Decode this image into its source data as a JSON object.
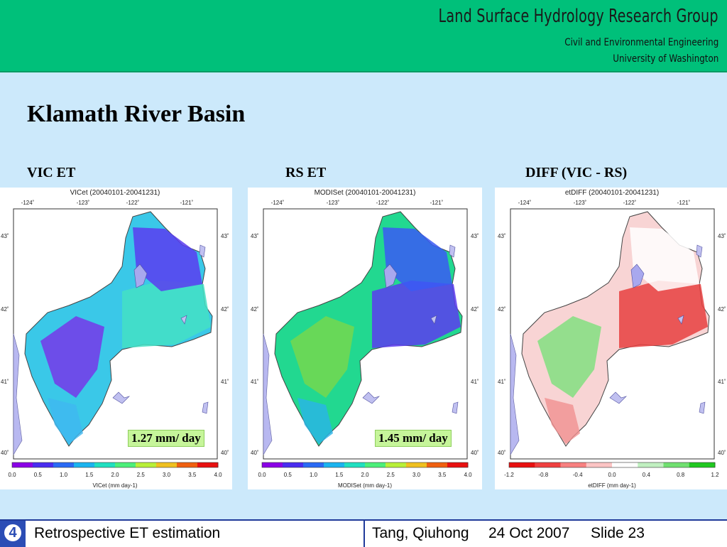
{
  "header": {
    "group": "Land Surface Hydrology Research Group",
    "department": "Civil and Environmental Engineering",
    "university": "University of Washington"
  },
  "slide_title": "Klamath River Basin",
  "panels": [
    {
      "heading": "VIC ET",
      "map_title": "VICet (20040101-20041231)",
      "colorbar_label": "VICet (mm day-1)",
      "ticks": [
        "0.0",
        "0.5",
        "1.0",
        "1.5",
        "2.0",
        "2.5",
        "3.0",
        "3.5",
        "4.0"
      ],
      "value_label": "1.27 mm/ day",
      "palette": [
        "#8a00e6",
        "#4a2cf0",
        "#2a6af5",
        "#1ab4f0",
        "#20e0c0",
        "#4cf07a",
        "#b8f038",
        "#f0c020",
        "#f06010",
        "#e81010"
      ],
      "basin_colors": [
        "#3ac8e8",
        "#44e0c4",
        "#5a3cf0",
        "#7a2ee8",
        "#40b8f0"
      ]
    },
    {
      "heading": "RS ET",
      "map_title": "MODISet (20040101-20041231)",
      "colorbar_label": "MODISet (mm day-1)",
      "ticks": [
        "0.0",
        "0.5",
        "1.0",
        "1.5",
        "2.0",
        "2.5",
        "3.0",
        "3.5",
        "4.0"
      ],
      "value_label": "1.45 mm/ day",
      "palette": [
        "#8a00e6",
        "#4a2cf0",
        "#2a6af5",
        "#1ab4f0",
        "#20e0c0",
        "#4cf07a",
        "#b8f038",
        "#f0c020",
        "#f06010",
        "#e81010"
      ],
      "basin_colors": [
        "#22d890",
        "#5a3cf0",
        "#3a5af5",
        "#7ad84a",
        "#2ab4e8"
      ]
    },
    {
      "heading": "DIFF (VIC - RS)",
      "map_title": "etDIFF (20040101-20041231)",
      "colorbar_label": "etDIFF (mm day-1)",
      "ticks": [
        "-1.2",
        "-0.8",
        "-0.4",
        "0.0",
        "0.4",
        "0.8",
        "1.2"
      ],
      "value_label": "",
      "palette": [
        "#e81010",
        "#f04040",
        "#f88080",
        "#fcc4c4",
        "#ffffff",
        "#c0f0c0",
        "#70e070",
        "#20c820"
      ],
      "basin_colors": [
        "#f8d4d4",
        "#e84040",
        "#ffffff",
        "#7ae07a",
        "#f09090"
      ]
    }
  ],
  "map_axes": {
    "lon_labels": [
      "-124˚",
      "-123˚",
      "-122˚",
      "-121˚"
    ],
    "lat_labels": [
      "43˚",
      "42˚",
      "41˚",
      "40˚"
    ]
  },
  "footer": {
    "number": "4",
    "section": "Retrospective ET estimation",
    "author": "Tang, Qiuhong",
    "date": "24 Oct 2007",
    "slide": "Slide 23"
  }
}
